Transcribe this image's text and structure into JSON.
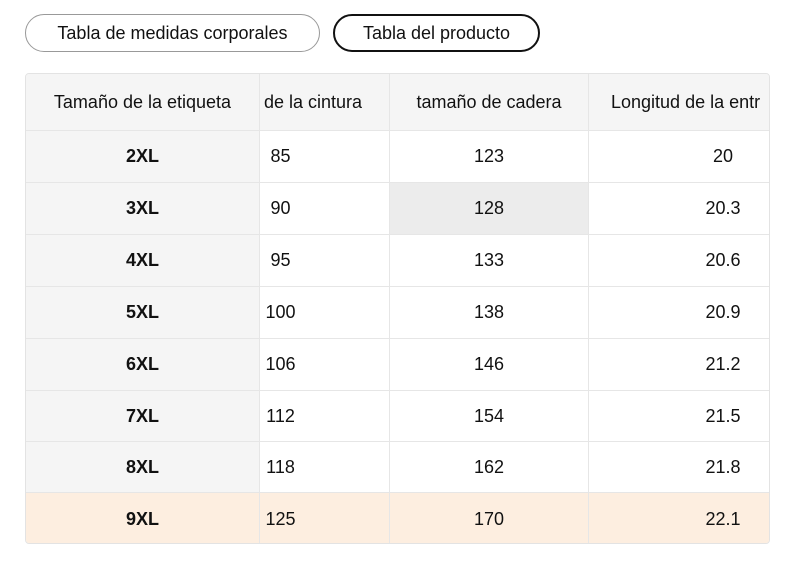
{
  "tabs": [
    "Tabla de medidas corporales",
    "Tabla del producto"
  ],
  "table": {
    "header": [
      "Tamaño de la etiqueta",
      "de la cintura",
      "tamaño de cadera",
      "Longitud de la entr"
    ],
    "rows": [
      [
        "2XL",
        85,
        123,
        20
      ],
      [
        "3XL",
        90,
        128,
        20.3
      ],
      [
        "4XL",
        95,
        133,
        20.6
      ],
      [
        "5XL",
        100,
        138,
        20.9
      ],
      [
        "6XL",
        106,
        146,
        21.2
      ],
      [
        "7XL",
        112,
        154,
        21.5
      ],
      [
        "8XL",
        118,
        162,
        21.8
      ],
      [
        "9XL",
        125,
        170,
        22.1
      ]
    ]
  }
}
